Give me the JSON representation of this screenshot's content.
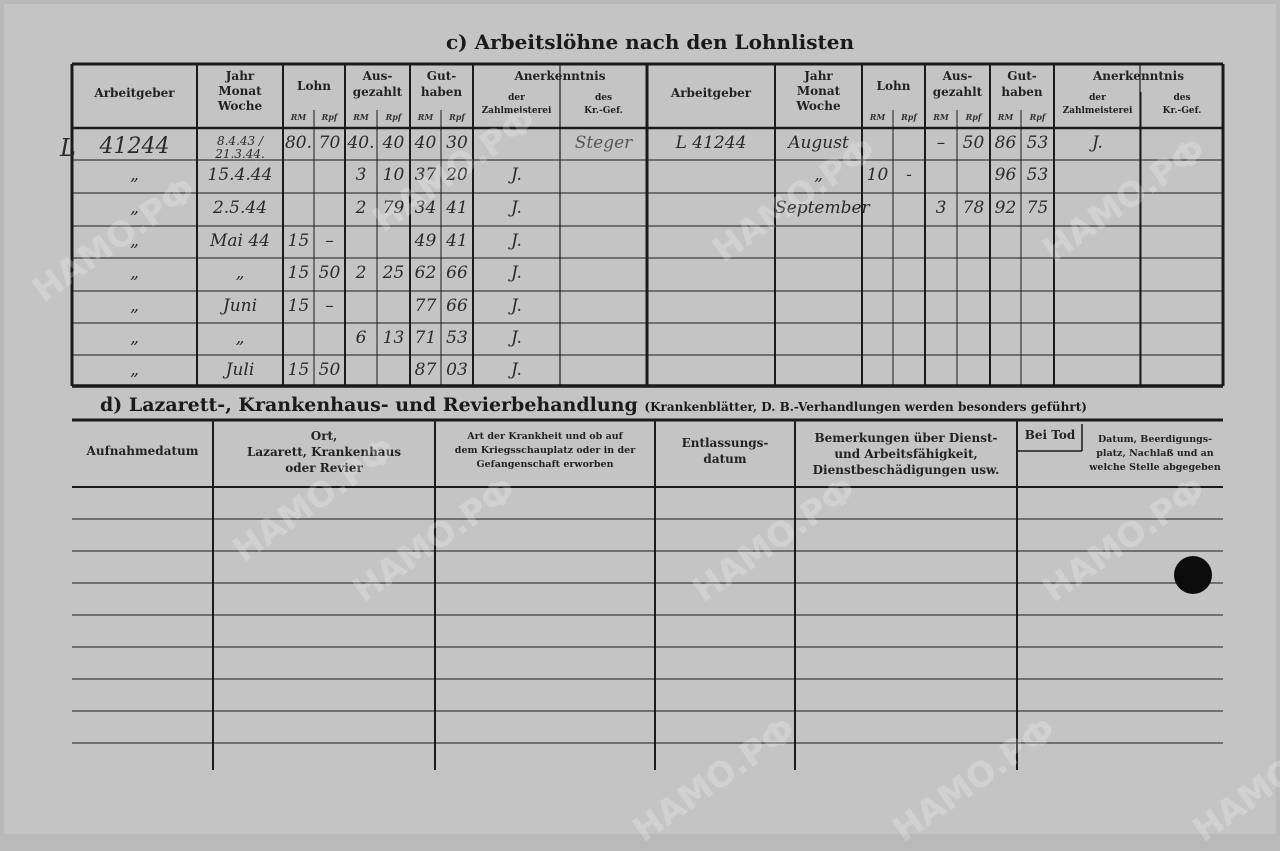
{
  "section_c": {
    "title": "c) Arbeitslöhne nach den Lohnlisten",
    "headers": {
      "arbeitgeber": "Arbeitgeber",
      "jahr": [
        "Jahr",
        "Monat",
        "Woche"
      ],
      "lohn": "Lohn",
      "ausgezahlt": [
        "Aus-",
        "gezahlt"
      ],
      "guthaben": [
        "Gut-",
        "haben"
      ],
      "rm": "RM",
      "rpf": "Rpf",
      "anerkenntnis": "Anerkenntnis",
      "zahlmeisterei": [
        "der",
        "Zahlmeisterei"
      ],
      "krgef": [
        "des",
        "Kr.-Gef."
      ]
    },
    "left_rows": [
      {
        "arbeitgeber": "41244",
        "datum": "8.4.43 / 21.3.44.",
        "lohn_rm": "80.",
        "lohn_rpf": "70",
        "aus_rm": "40.",
        "aus_rpf": "40",
        "gut_rm": "40",
        "gut_rpf": "30",
        "zahl": "",
        "krgef": "Steger"
      },
      {
        "arbeitgeber": "„",
        "datum": "15.4.44",
        "lohn_rm": "",
        "lohn_rpf": "",
        "aus_rm": "3",
        "aus_rpf": "10",
        "gut_rm": "37",
        "gut_rpf": "20",
        "zahl": "J.",
        "krgef": ""
      },
      {
        "arbeitgeber": "„",
        "datum": "2.5.44",
        "lohn_rm": "",
        "lohn_rpf": "",
        "aus_rm": "2",
        "aus_rpf": "79",
        "gut_rm": "34",
        "gut_rpf": "41",
        "zahl": "J.",
        "krgef": ""
      },
      {
        "arbeitgeber": "„",
        "datum": "Mai 44",
        "lohn_rm": "15",
        "lohn_rpf": "–",
        "aus_rm": "",
        "aus_rpf": "",
        "gut_rm": "49",
        "gut_rpf": "41",
        "zahl": "J.",
        "krgef": ""
      },
      {
        "arbeitgeber": "„",
        "datum": "„",
        "lohn_rm": "15",
        "lohn_rpf": "50",
        "aus_rm": "2",
        "aus_rpf": "25",
        "gut_rm": "62",
        "gut_rpf": "66",
        "zahl": "J.",
        "krgef": ""
      },
      {
        "arbeitgeber": "„",
        "datum": "Juni",
        "lohn_rm": "15",
        "lohn_rpf": "–",
        "aus_rm": "",
        "aus_rpf": "",
        "gut_rm": "77",
        "gut_rpf": "66",
        "zahl": "J.",
        "krgef": ""
      },
      {
        "arbeitgeber": "„",
        "datum": "„",
        "lohn_rm": "",
        "lohn_rpf": "",
        "aus_rm": "6",
        "aus_rpf": "13",
        "gut_rm": "71",
        "gut_rpf": "53",
        "zahl": "J.",
        "krgef": ""
      },
      {
        "arbeitgeber": "„",
        "datum": "Juli",
        "lohn_rm": "15",
        "lohn_rpf": "50",
        "aus_rm": "",
        "aus_rpf": "",
        "gut_rm": "87",
        "gut_rpf": "03",
        "zahl": "J.",
        "krgef": ""
      }
    ],
    "right_rows": [
      {
        "arbeitgeber": "L 41244",
        "datum": "August",
        "lohn_rm": "",
        "lohn_rpf": "",
        "aus_rm": "–",
        "aus_rpf": "50",
        "gut_rm": "86",
        "gut_rpf": "53",
        "zahl": "J.",
        "krgef": ""
      },
      {
        "arbeitgeber": "",
        "datum": "„",
        "lohn_rm": "10",
        "lohn_rpf": "-",
        "aus_rm": "",
        "aus_rpf": "",
        "gut_rm": "96",
        "gut_rpf": "53",
        "zahl": "",
        "krgef": ""
      },
      {
        "arbeitgeber": "",
        "datum": "September",
        "lohn_rm": "",
        "lohn_rpf": "",
        "aus_rm": "3",
        "aus_rpf": "78",
        "gut_rm": "92",
        "gut_rpf": "75",
        "zahl": "",
        "krgef": ""
      }
    ],
    "margin_mark": "L"
  },
  "section_d": {
    "title": "d) Lazarett-, Krankenhaus- und Revierbehandlung",
    "subtitle": "(Krankenblätter, D. B.-Verhandlungen werden besonders geführt)",
    "headers": [
      [
        "Aufnahmedatum"
      ],
      [
        "Ort,",
        "Lazarett, Krankenhaus",
        "oder Revier"
      ],
      [
        "Art der Krankheit und ob auf",
        "dem Kriegsschauplatz oder in der",
        "Gefangenschaft erworben"
      ],
      [
        "Entlassungs-",
        "datum"
      ],
      [
        "Bemerkungen über Dienst-",
        "und Arbeitsfähigkeit,",
        "Dienstbeschädigungen usw."
      ],
      [
        "Datum, Beerdigungs-",
        "platz, Nachlaß und an",
        "welche Stelle abgegeben"
      ]
    ],
    "bei_tod": "Bei Tod"
  },
  "watermark": "НАМО.РФ"
}
